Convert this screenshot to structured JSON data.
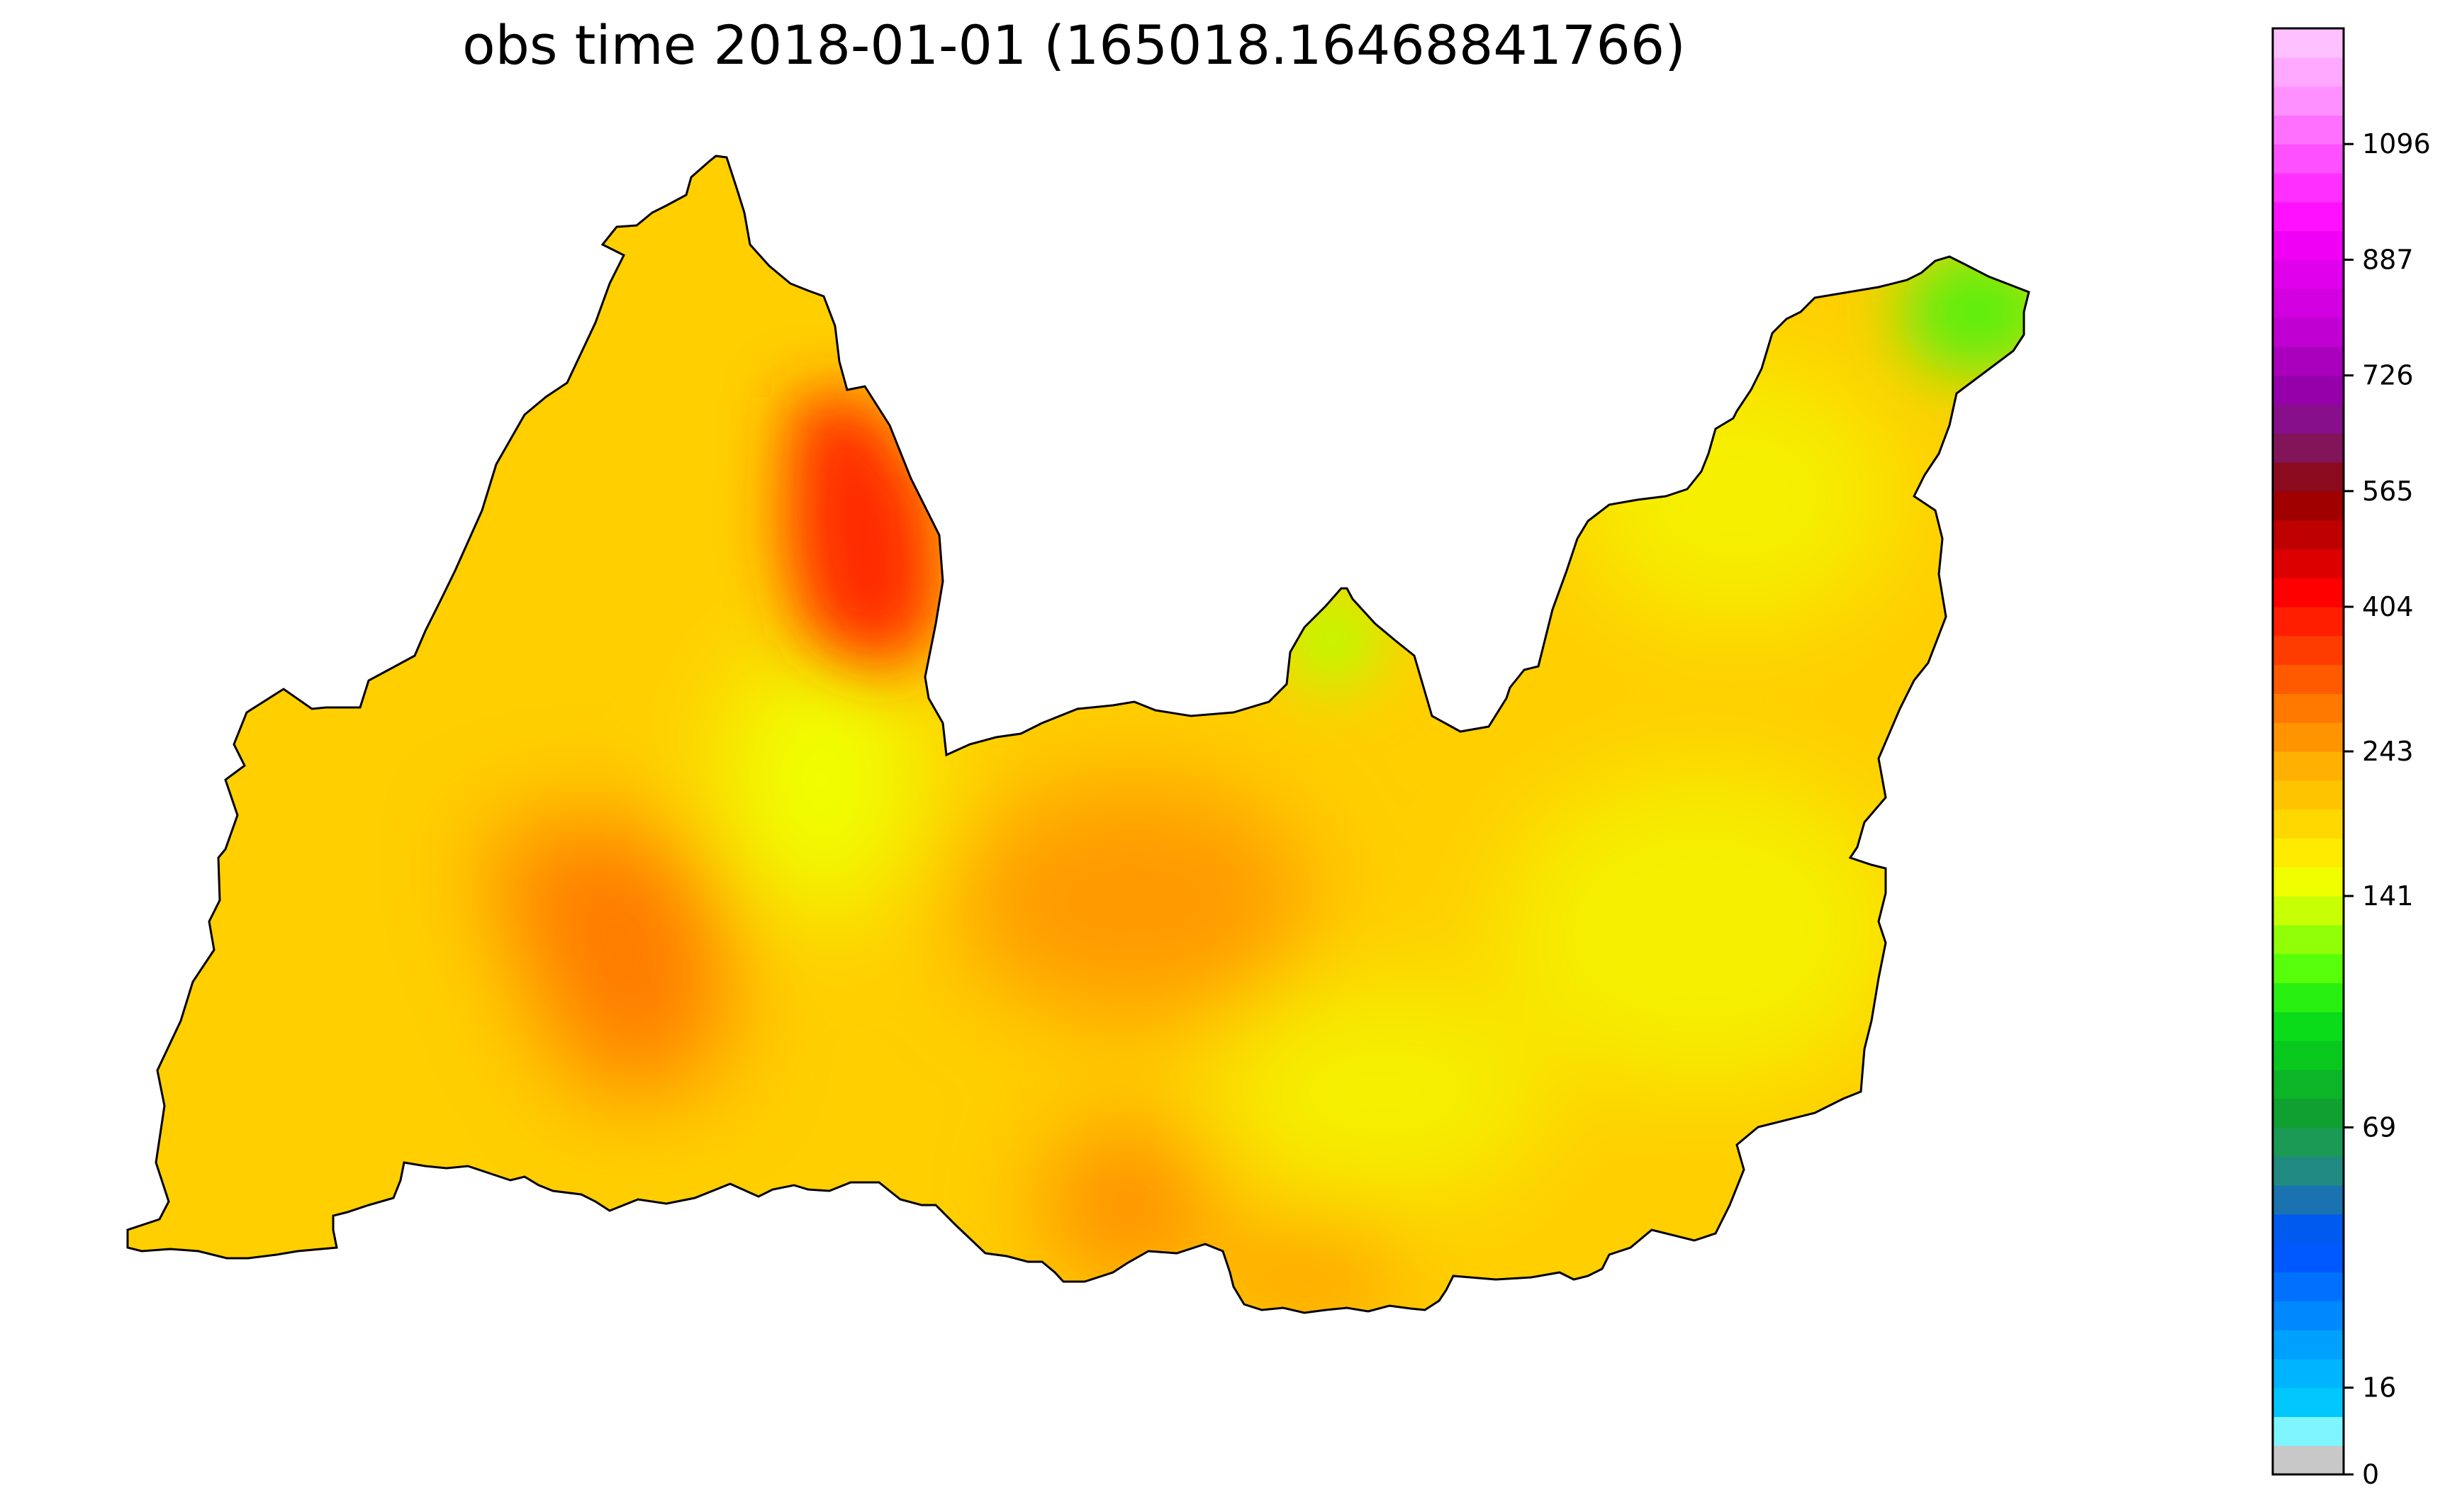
{
  "title": "obs time 2018-01-01 (165018.16468841766)",
  "colorbar": {
    "tick_labels": [
      "0",
      "16",
      "69",
      "141",
      "243",
      "404",
      "565",
      "726",
      "887",
      "1096"
    ],
    "tick_values": [
      0,
      16,
      69,
      141,
      243,
      404,
      565,
      726,
      887,
      1096
    ],
    "max_value": 1300,
    "bands": [
      {
        "from": 0,
        "to": 4,
        "color": "#c8c8c8"
      },
      {
        "from": 4,
        "to": 10,
        "color": "#7ef5ff"
      },
      {
        "from": 10,
        "to": 16,
        "color": "#00c8ff"
      },
      {
        "from": 16,
        "to": 22,
        "color": "#00b4ff"
      },
      {
        "from": 22,
        "to": 28,
        "color": "#00a0ff"
      },
      {
        "from": 28,
        "to": 34,
        "color": "#0088ff"
      },
      {
        "from": 34,
        "to": 40,
        "color": "#0070ff"
      },
      {
        "from": 40,
        "to": 46,
        "color": "#0058ff"
      },
      {
        "from": 46,
        "to": 52,
        "color": "#005af0"
      },
      {
        "from": 52,
        "to": 58,
        "color": "#1a73b0"
      },
      {
        "from": 58,
        "to": 64,
        "color": "#208a80"
      },
      {
        "from": 64,
        "to": 69,
        "color": "#1b9a55"
      },
      {
        "from": 69,
        "to": 76,
        "color": "#10a030"
      },
      {
        "from": 76,
        "to": 84,
        "color": "#0cb428"
      },
      {
        "from": 84,
        "to": 92,
        "color": "#08c81e"
      },
      {
        "from": 92,
        "to": 100,
        "color": "#0adc1a"
      },
      {
        "from": 100,
        "to": 110,
        "color": "#28f010"
      },
      {
        "from": 110,
        "to": 120,
        "color": "#58ff0a"
      },
      {
        "from": 120,
        "to": 130,
        "color": "#90ff08"
      },
      {
        "from": 130,
        "to": 141,
        "color": "#c8ff05"
      },
      {
        "from": 141,
        "to": 160,
        "color": "#f0ff00"
      },
      {
        "from": 160,
        "to": 180,
        "color": "#ffeb00"
      },
      {
        "from": 180,
        "to": 200,
        "color": "#ffd800"
      },
      {
        "from": 200,
        "to": 220,
        "color": "#ffc400"
      },
      {
        "from": 220,
        "to": 243,
        "color": "#ffb000"
      },
      {
        "from": 243,
        "to": 270,
        "color": "#ff9400"
      },
      {
        "from": 270,
        "to": 300,
        "color": "#ff7800"
      },
      {
        "from": 300,
        "to": 335,
        "color": "#ff5a00"
      },
      {
        "from": 335,
        "to": 370,
        "color": "#ff3c00"
      },
      {
        "from": 370,
        "to": 404,
        "color": "#ff1e00"
      },
      {
        "from": 404,
        "to": 445,
        "color": "#ff0000"
      },
      {
        "from": 445,
        "to": 485,
        "color": "#dc0000"
      },
      {
        "from": 485,
        "to": 525,
        "color": "#be0000"
      },
      {
        "from": 525,
        "to": 565,
        "color": "#a00000"
      },
      {
        "from": 565,
        "to": 605,
        "color": "#8c0a1e"
      },
      {
        "from": 605,
        "to": 645,
        "color": "#82145a"
      },
      {
        "from": 645,
        "to": 685,
        "color": "#870f8c"
      },
      {
        "from": 685,
        "to": 726,
        "color": "#9600aa"
      },
      {
        "from": 726,
        "to": 766,
        "color": "#aa00be"
      },
      {
        "from": 766,
        "to": 806,
        "color": "#c000d2"
      },
      {
        "from": 806,
        "to": 846,
        "color": "#d200e0"
      },
      {
        "from": 846,
        "to": 887,
        "color": "#e100ec"
      },
      {
        "from": 887,
        "to": 940,
        "color": "#f000f5"
      },
      {
        "from": 940,
        "to": 995,
        "color": "#ff10ff"
      },
      {
        "from": 995,
        "to": 1045,
        "color": "#ff30ff"
      },
      {
        "from": 1045,
        "to": 1096,
        "color": "#ff50ff"
      },
      {
        "from": 1096,
        "to": 1150,
        "color": "#ff70ff"
      },
      {
        "from": 1150,
        "to": 1200,
        "color": "#ff90ff"
      },
      {
        "from": 1200,
        "to": 1250,
        "color": "#ffa8ff"
      },
      {
        "from": 1250,
        "to": 1300,
        "color": "#ffc0ff"
      }
    ]
  },
  "map": {
    "base_color": "#ffcf00",
    "outline_color": "#000000",
    "hotspots": [
      {
        "name": "north-peak-red",
        "value": 370,
        "color": "#ff2a00"
      },
      {
        "name": "west-orange",
        "value": 280,
        "color": "#ff7a00"
      },
      {
        "name": "center-orange",
        "value": 255,
        "color": "#ff9a00"
      },
      {
        "name": "south-orange",
        "value": 265,
        "color": "#ff8a00"
      },
      {
        "name": "southeast-orange",
        "value": 255,
        "color": "#ff9400"
      },
      {
        "name": "east-yellow",
        "value": 165,
        "color": "#f5f000"
      },
      {
        "name": "middle-yellow",
        "value": 150,
        "color": "#f0ff00"
      },
      {
        "name": "north-lime",
        "value": 125,
        "color": "#b8ff00"
      },
      {
        "name": "northeast-green",
        "value": 105,
        "color": "#5af00a"
      }
    ]
  }
}
